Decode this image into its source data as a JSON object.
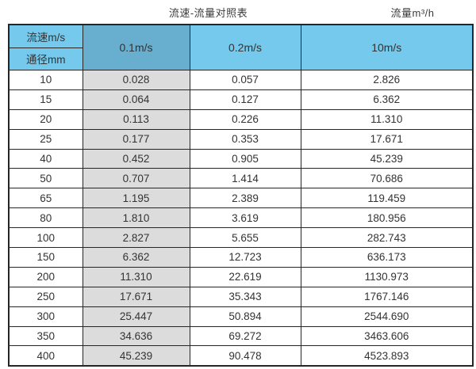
{
  "page": {
    "title_left": "流速-流量对照表",
    "title_right": "流量m³/h"
  },
  "table": {
    "corner_top": "流速m/s",
    "corner_bottom": "通径mm",
    "columns": [
      "0.1m/s",
      "0.2m/s",
      "10m/s"
    ],
    "rows": [
      {
        "diameter": "10",
        "values": [
          "0.028",
          "0.057",
          "2.826"
        ]
      },
      {
        "diameter": "15",
        "values": [
          "0.064",
          "0.127",
          "6.362"
        ]
      },
      {
        "diameter": "20",
        "values": [
          "0.113",
          "0.226",
          "11.310"
        ]
      },
      {
        "diameter": "25",
        "values": [
          "0.177",
          "0.353",
          "17.671"
        ]
      },
      {
        "diameter": "40",
        "values": [
          "0.452",
          "0.905",
          "45.239"
        ]
      },
      {
        "diameter": "50",
        "values": [
          "0.707",
          "1.414",
          "70.686"
        ]
      },
      {
        "diameter": "65",
        "values": [
          "1.195",
          "2.389",
          "119.459"
        ]
      },
      {
        "diameter": "80",
        "values": [
          "1.810",
          "3.619",
          "180.956"
        ]
      },
      {
        "diameter": "100",
        "values": [
          "2.827",
          "5.655",
          "282.743"
        ]
      },
      {
        "diameter": "150",
        "values": [
          "6.362",
          "12.723",
          "636.173"
        ]
      },
      {
        "diameter": "200",
        "values": [
          "11.310",
          "22.619",
          "1130.973"
        ]
      },
      {
        "diameter": "250",
        "values": [
          "17.671",
          "35.343",
          "1767.146"
        ]
      },
      {
        "diameter": "300",
        "values": [
          "25.447",
          "50.894",
          "2544.690"
        ]
      },
      {
        "diameter": "350",
        "values": [
          "34.636",
          "69.272",
          "3463.606"
        ]
      },
      {
        "diameter": "400",
        "values": [
          "45.239",
          "90.478",
          "4523.893"
        ]
      }
    ]
  },
  "colors": {
    "header_blue": "#74C9EC",
    "header_muted_blue": "#68AECF",
    "gray_column": "#DCDCDC",
    "border": "#262626"
  },
  "chart_data": {
    "type": "table",
    "title": "流速-流量对照表",
    "value_unit": "流量m³/h",
    "row_header": "通径mm",
    "column_header": "流速m/s",
    "categories": [
      10,
      15,
      20,
      25,
      40,
      50,
      65,
      80,
      100,
      150,
      200,
      250,
      300,
      350,
      400
    ],
    "series": [
      {
        "name": "0.1m/s",
        "values": [
          0.028,
          0.064,
          0.113,
          0.177,
          0.452,
          0.707,
          1.195,
          1.81,
          2.827,
          6.362,
          11.31,
          17.671,
          25.447,
          34.636,
          45.239
        ]
      },
      {
        "name": "0.2m/s",
        "values": [
          0.057,
          0.127,
          0.226,
          0.353,
          0.905,
          1.414,
          2.389,
          3.619,
          5.655,
          12.723,
          22.619,
          35.343,
          50.894,
          69.272,
          90.478
        ]
      },
      {
        "name": "10m/s",
        "values": [
          2.826,
          6.362,
          11.31,
          17.671,
          45.239,
          70.686,
          119.459,
          180.956,
          282.743,
          636.173,
          1130.973,
          1767.146,
          2544.69,
          3463.606,
          4523.893
        ]
      }
    ]
  }
}
